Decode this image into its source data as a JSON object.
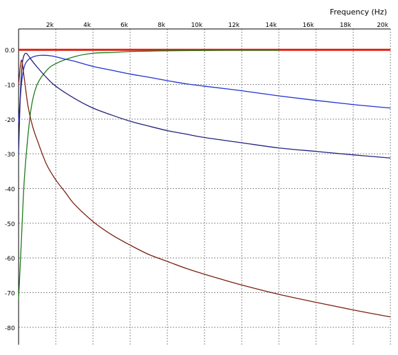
{
  "chart_data": {
    "type": "line",
    "title": "",
    "xlabel": "Frequency  (Hz)",
    "ylabel": "",
    "x_unit": "Hz",
    "xlim": [
      0,
      20000
    ],
    "ylim": [
      -85,
      6
    ],
    "grid": true,
    "grid_style": "dashed",
    "legend": "none",
    "x_ticks": [
      2000,
      4000,
      6000,
      8000,
      10000,
      12000,
      14000,
      16000,
      18000,
      20000
    ],
    "x_tick_labels": [
      "2k",
      "4k",
      "6k",
      "8k",
      "10k",
      "12k",
      "14k",
      "16k",
      "18k",
      "20k"
    ],
    "y_ticks": [
      0,
      -10,
      -20,
      -30,
      -40,
      -50,
      -60,
      -70,
      -80
    ],
    "y_tick_labels": [
      "0.0",
      "-10",
      "-20",
      "-30",
      "-40",
      "-50",
      "-60",
      "-70",
      "-80"
    ],
    "series": [
      {
        "color": "#e02010",
        "x": [
          0,
          20000
        ],
        "y": [
          0,
          0
        ]
      },
      {
        "color": "#1a7a1a",
        "x": [
          0,
          150,
          300,
          500,
          700,
          1000,
          1500,
          2000,
          3000,
          4000,
          5000,
          6000,
          8000,
          10000,
          12000,
          14000
        ],
        "y": [
          -72,
          -55,
          -38,
          -25,
          -16,
          -10,
          -6,
          -4,
          -2,
          -1,
          -0.8,
          -0.5,
          -0.3,
          -0.2,
          -0.1,
          -0.1
        ]
      },
      {
        "color": "#2030d0",
        "x": [
          0,
          150,
          300,
          500,
          800,
          1200,
          1800,
          2500,
          3000,
          4000,
          5000,
          6000,
          7000,
          8000,
          9000,
          10000,
          12000,
          14000,
          16000,
          18000,
          20000
        ],
        "y": [
          -21,
          -10,
          -5,
          -3,
          -2,
          -1.6,
          -1.8,
          -2.7,
          -3.3,
          -4.8,
          -5.9,
          -7,
          -7.9,
          -8.9,
          -9.8,
          -10.5,
          -11.8,
          -13.3,
          -14.6,
          -15.8,
          -16.8
        ]
      },
      {
        "color": "#20207a",
        "x": [
          0,
          100,
          200,
          300,
          400,
          500,
          700,
          1000,
          1500,
          2000,
          3000,
          4000,
          5000,
          6000,
          7000,
          8000,
          9000,
          10000,
          12000,
          14000,
          16000,
          18000,
          20000
        ],
        "y": [
          -30,
          -12,
          -4,
          -1.5,
          -1,
          -1.5,
          -3,
          -5,
          -8,
          -10.5,
          -14,
          -16.8,
          -18.8,
          -20.6,
          -22,
          -23.3,
          -24.3,
          -25.3,
          -26.8,
          -28.3,
          -29.3,
          -30.3,
          -31.2
        ]
      },
      {
        "color": "#7a2010",
        "x": [
          0,
          150,
          300,
          500,
          750,
          1000,
          1500,
          2000,
          2500,
          3000,
          4000,
          5000,
          6000,
          7000,
          8000,
          9000,
          10000,
          12000,
          14000,
          16000,
          18000,
          20000
        ],
        "y": [
          -10,
          -3,
          -8,
          -16,
          -22,
          -26,
          -33,
          -37.5,
          -41,
          -44.5,
          -49.5,
          -53.3,
          -56.3,
          -59,
          -61,
          -63,
          -64.7,
          -67.8,
          -70.5,
          -72.8,
          -75,
          -77
        ]
      }
    ]
  }
}
